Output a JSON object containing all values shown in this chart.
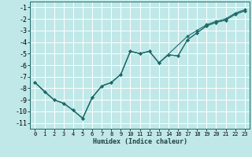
{
  "xlabel": "Humidex (Indice chaleur)",
  "bg_color": "#c0e8e8",
  "grid_color": "#ffffff",
  "line_color": "#1e6b6b",
  "xlim": [
    -0.5,
    23.5
  ],
  "ylim": [
    -11.5,
    -0.5
  ],
  "xticks": [
    0,
    1,
    2,
    3,
    4,
    5,
    6,
    7,
    8,
    9,
    10,
    11,
    12,
    13,
    14,
    16,
    17,
    18,
    19,
    20,
    21,
    22,
    23
  ],
  "yticks": [
    -1,
    -2,
    -3,
    -4,
    -5,
    -6,
    -7,
    -8,
    -9,
    -10,
    -11
  ],
  "series": [
    {
      "x": [
        0,
        1,
        2,
        3,
        4,
        5,
        6,
        7,
        8,
        9,
        10,
        11,
        12,
        13,
        17,
        18,
        19,
        20,
        21,
        22,
        23
      ],
      "y": [
        -7.5,
        -8.3,
        -9.0,
        -9.3,
        -9.9,
        -10.6,
        -8.8,
        -7.8,
        -7.5,
        -6.8,
        -4.8,
        -5.0,
        -4.8,
        -5.8,
        -3.5,
        -3.0,
        -2.5,
        -2.2,
        -2.0,
        -1.5,
        -1.2
      ]
    },
    {
      "x": [
        0,
        1,
        2,
        3,
        4,
        5,
        6,
        7,
        8,
        9,
        10,
        11,
        12,
        13,
        14,
        16,
        17,
        18,
        19,
        20,
        21,
        22,
        23
      ],
      "y": [
        -7.5,
        -8.3,
        -9.0,
        -9.3,
        -9.9,
        -10.6,
        -8.8,
        -7.8,
        -7.5,
        -6.8,
        -4.8,
        -5.0,
        -4.8,
        -5.8,
        -5.1,
        -5.2,
        -3.8,
        -3.2,
        -2.6,
        -2.3,
        -2.1,
        -1.6,
        -1.3
      ]
    },
    {
      "x": [
        0,
        2,
        3,
        4,
        5,
        6,
        7,
        8,
        9,
        10,
        11,
        12,
        13,
        14,
        16,
        17,
        18,
        19,
        20,
        21,
        22,
        23
      ],
      "y": [
        -7.5,
        -9.0,
        -9.3,
        -9.9,
        -10.6,
        -8.8,
        -7.8,
        -7.5,
        -6.8,
        -4.8,
        -5.0,
        -4.8,
        -5.8,
        -5.1,
        -5.2,
        -3.8,
        -3.2,
        -2.6,
        -2.3,
        -2.1,
        -1.6,
        -1.3
      ]
    }
  ]
}
